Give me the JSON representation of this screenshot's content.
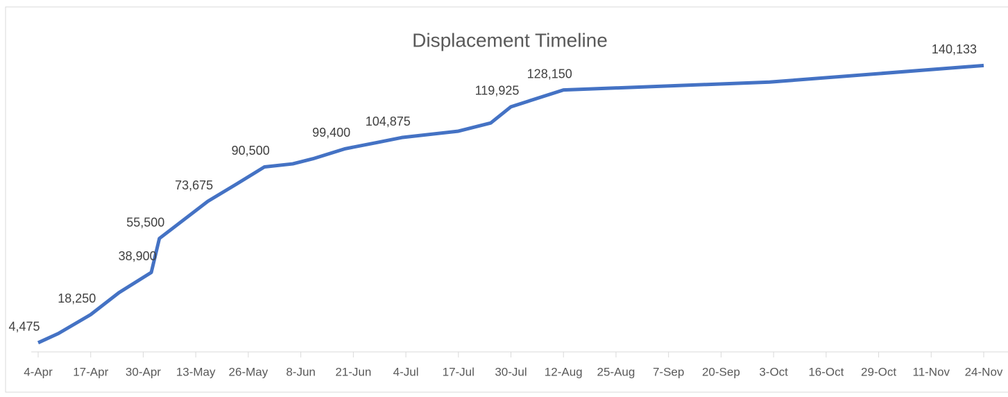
{
  "chart_data": {
    "type": "line",
    "title": "Displacement Timeline",
    "x": [
      "4-Apr",
      "9-Apr",
      "17-Apr",
      "24-Apr",
      "2-May",
      "4-May",
      "16-May",
      "23-May",
      "30-May",
      "6-Jun",
      "11-Jun",
      "19-Jun",
      "27-Jun",
      "3-Jul",
      "17-Jul",
      "25-Jul",
      "30-Jul",
      "12-Aug",
      "2-Oct",
      "24-Nov"
    ],
    "series": [
      {
        "name": "Displacement",
        "color": "#4472c4",
        "values": [
          4475,
          9000,
          18250,
          29000,
          38900,
          55500,
          73675,
          82000,
          90500,
          92000,
          94500,
          99400,
          102500,
          104875,
          108000,
          112000,
          119925,
          128150,
          132000,
          140133
        ],
        "value_labels": [
          "4,475",
          null,
          "18,250",
          null,
          "38,900",
          "55,500",
          "73,675",
          null,
          "90,500",
          null,
          null,
          "99,400",
          null,
          "104,875",
          null,
          null,
          "119,925",
          "128,150",
          null,
          "140,133"
        ]
      }
    ],
    "xlim": [
      "4-Apr",
      "24-Nov"
    ],
    "xticks": [
      "4-Apr",
      "17-Apr",
      "30-Apr",
      "13-May",
      "26-May",
      "8-Jun",
      "21-Jun",
      "4-Jul",
      "17-Jul",
      "30-Jul",
      "12-Aug",
      "25-Aug",
      "7-Sep",
      "20-Sep",
      "3-Oct",
      "16-Oct",
      "29-Oct",
      "11-Nov",
      "24-Nov"
    ],
    "ylim": [
      0,
      145000
    ]
  }
}
